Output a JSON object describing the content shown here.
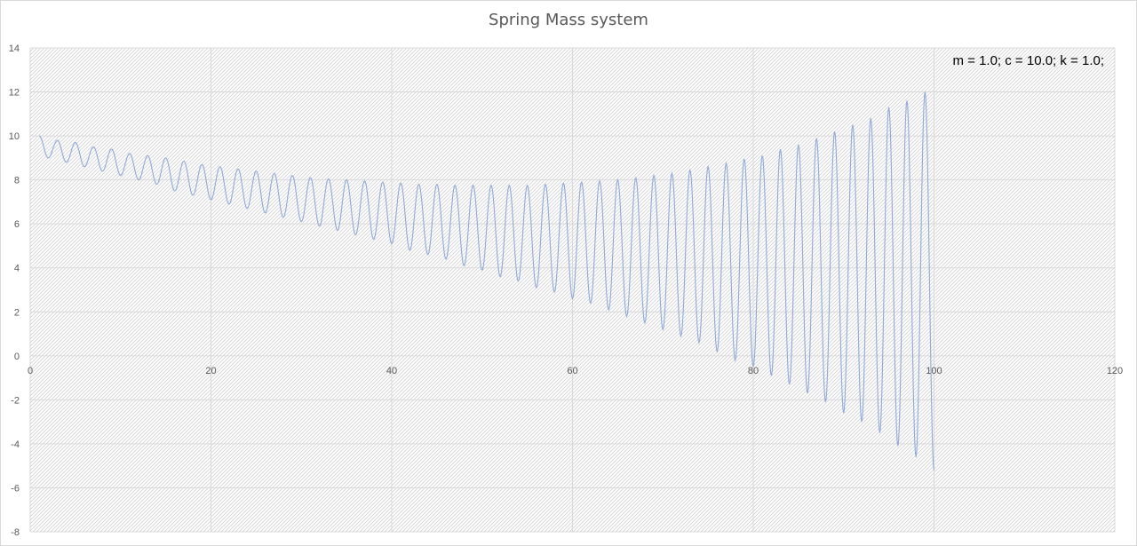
{
  "chart_data": {
    "type": "line",
    "title": "Spring Mass system",
    "xlabel": "",
    "ylabel": "",
    "xlim": [
      0,
      120
    ],
    "ylim": [
      -8,
      14
    ],
    "x_ticks": [
      0,
      20,
      40,
      60,
      80,
      100,
      120
    ],
    "y_ticks": [
      -8,
      -6,
      -4,
      -2,
      0,
      2,
      4,
      6,
      8,
      10,
      12,
      14
    ],
    "grid": true,
    "legend": "none",
    "annotation": "m = 1.0; c = 10.0; k = 1.0;",
    "series": [
      {
        "color": "#8faadc",
        "oscillation_period": 2.0,
        "x_range": [
          1,
          100
        ],
        "peaks": [
          [
            1,
            10.0
          ],
          [
            3,
            9.8
          ],
          [
            5,
            9.7
          ],
          [
            7,
            9.5
          ],
          [
            9,
            9.4
          ],
          [
            11,
            9.2
          ],
          [
            13,
            9.1
          ],
          [
            15,
            9.0
          ],
          [
            17,
            8.85
          ],
          [
            19,
            8.7
          ],
          [
            21,
            8.6
          ],
          [
            23,
            8.5
          ],
          [
            25,
            8.4
          ],
          [
            27,
            8.3
          ],
          [
            29,
            8.2
          ],
          [
            31,
            8.1
          ],
          [
            33,
            8.05
          ],
          [
            35,
            8.0
          ],
          [
            37,
            7.95
          ],
          [
            39,
            7.9
          ],
          [
            41,
            7.85
          ],
          [
            43,
            7.8
          ],
          [
            45,
            7.8
          ],
          [
            47,
            7.75
          ],
          [
            49,
            7.75
          ],
          [
            51,
            7.75
          ],
          [
            53,
            7.75
          ],
          [
            55,
            7.75
          ],
          [
            57,
            7.8
          ],
          [
            59,
            7.85
          ],
          [
            61,
            7.9
          ],
          [
            63,
            7.95
          ],
          [
            65,
            8.0
          ],
          [
            67,
            8.1
          ],
          [
            69,
            8.2
          ],
          [
            71,
            8.3
          ],
          [
            73,
            8.45
          ],
          [
            75,
            8.6
          ],
          [
            77,
            8.75
          ],
          [
            79,
            8.95
          ],
          [
            81,
            9.1
          ],
          [
            83,
            9.4
          ],
          [
            85,
            9.6
          ],
          [
            87,
            9.9
          ],
          [
            89,
            10.2
          ],
          [
            91,
            10.5
          ],
          [
            93,
            10.8
          ],
          [
            95,
            11.3
          ],
          [
            97,
            11.6
          ],
          [
            99,
            12.0
          ]
        ],
        "troughs": [
          [
            2,
            9.0
          ],
          [
            4,
            8.8
          ],
          [
            6,
            8.6
          ],
          [
            8,
            8.4
          ],
          [
            10,
            8.2
          ],
          [
            12,
            8.0
          ],
          [
            14,
            7.8
          ],
          [
            16,
            7.5
          ],
          [
            18,
            7.3
          ],
          [
            20,
            7.1
          ],
          [
            22,
            6.9
          ],
          [
            24,
            6.7
          ],
          [
            26,
            6.5
          ],
          [
            28,
            6.3
          ],
          [
            30,
            6.1
          ],
          [
            32,
            5.9
          ],
          [
            34,
            5.7
          ],
          [
            36,
            5.5
          ],
          [
            38,
            5.3
          ],
          [
            40,
            5.1
          ],
          [
            42,
            4.8
          ],
          [
            44,
            4.6
          ],
          [
            46,
            4.4
          ],
          [
            48,
            4.1
          ],
          [
            50,
            3.9
          ],
          [
            52,
            3.6
          ],
          [
            54,
            3.4
          ],
          [
            56,
            3.1
          ],
          [
            58,
            2.9
          ],
          [
            60,
            2.6
          ],
          [
            62,
            2.4
          ],
          [
            64,
            2.1
          ],
          [
            66,
            1.8
          ],
          [
            68,
            1.5
          ],
          [
            70,
            1.2
          ],
          [
            72,
            0.9
          ],
          [
            74,
            0.6
          ],
          [
            76,
            0.2
          ],
          [
            78,
            -0.2
          ],
          [
            80,
            -0.5
          ],
          [
            82,
            -0.9
          ],
          [
            84,
            -1.3
          ],
          [
            86,
            -1.7
          ],
          [
            88,
            -2.1
          ],
          [
            90,
            -2.6
          ],
          [
            92,
            -3.0
          ],
          [
            94,
            -3.5
          ],
          [
            96,
            -4.1
          ],
          [
            98,
            -4.6
          ],
          [
            100,
            -5.2
          ]
        ]
      }
    ]
  }
}
